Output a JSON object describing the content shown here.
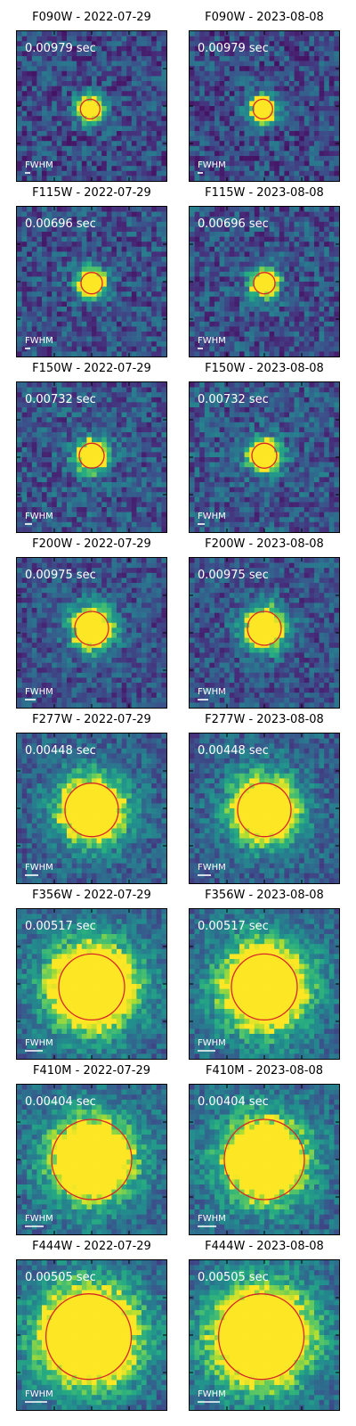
{
  "circle_color": "#d62728",
  "text_color": "#ffffff",
  "colormap": "viridis",
  "scalebar_label": "FWHM",
  "panels": [
    [
      {
        "title": "F090W - 2022-07-29",
        "exposure": "0.00979 sec"
      },
      {
        "title": "F090W - 2023-08-08",
        "exposure": "0.00979 sec"
      }
    ],
    [
      {
        "title": "F115W - 2022-07-29",
        "exposure": "0.00696 sec"
      },
      {
        "title": "F115W - 2023-08-08",
        "exposure": "0.00696 sec"
      }
    ],
    [
      {
        "title": "F150W - 2022-07-29",
        "exposure": "0.00732 sec"
      },
      {
        "title": "F150W - 2023-08-08",
        "exposure": "0.00732 sec"
      }
    ],
    [
      {
        "title": "F200W - 2022-07-29",
        "exposure": "0.00975 sec"
      },
      {
        "title": "F200W - 2023-08-08",
        "exposure": "0.00975 sec"
      }
    ],
    [
      {
        "title": "F277W - 2022-07-29",
        "exposure": "0.00448 sec"
      },
      {
        "title": "F277W - 2023-08-08",
        "exposure": "0.00448 sec"
      }
    ],
    [
      {
        "title": "F356W - 2022-07-29",
        "exposure": "0.00517 sec"
      },
      {
        "title": "F356W - 2023-08-08",
        "exposure": "0.00517 sec"
      }
    ],
    [
      {
        "title": "F410M - 2022-07-29",
        "exposure": "0.00404 sec"
      },
      {
        "title": "F410M - 2023-08-08",
        "exposure": "0.00404 sec"
      }
    ],
    [
      {
        "title": "F444W - 2022-07-29",
        "exposure": "0.00505 sec"
      },
      {
        "title": "F444W - 2023-08-08",
        "exposure": "0.00505 sec"
      }
    ]
  ]
}
